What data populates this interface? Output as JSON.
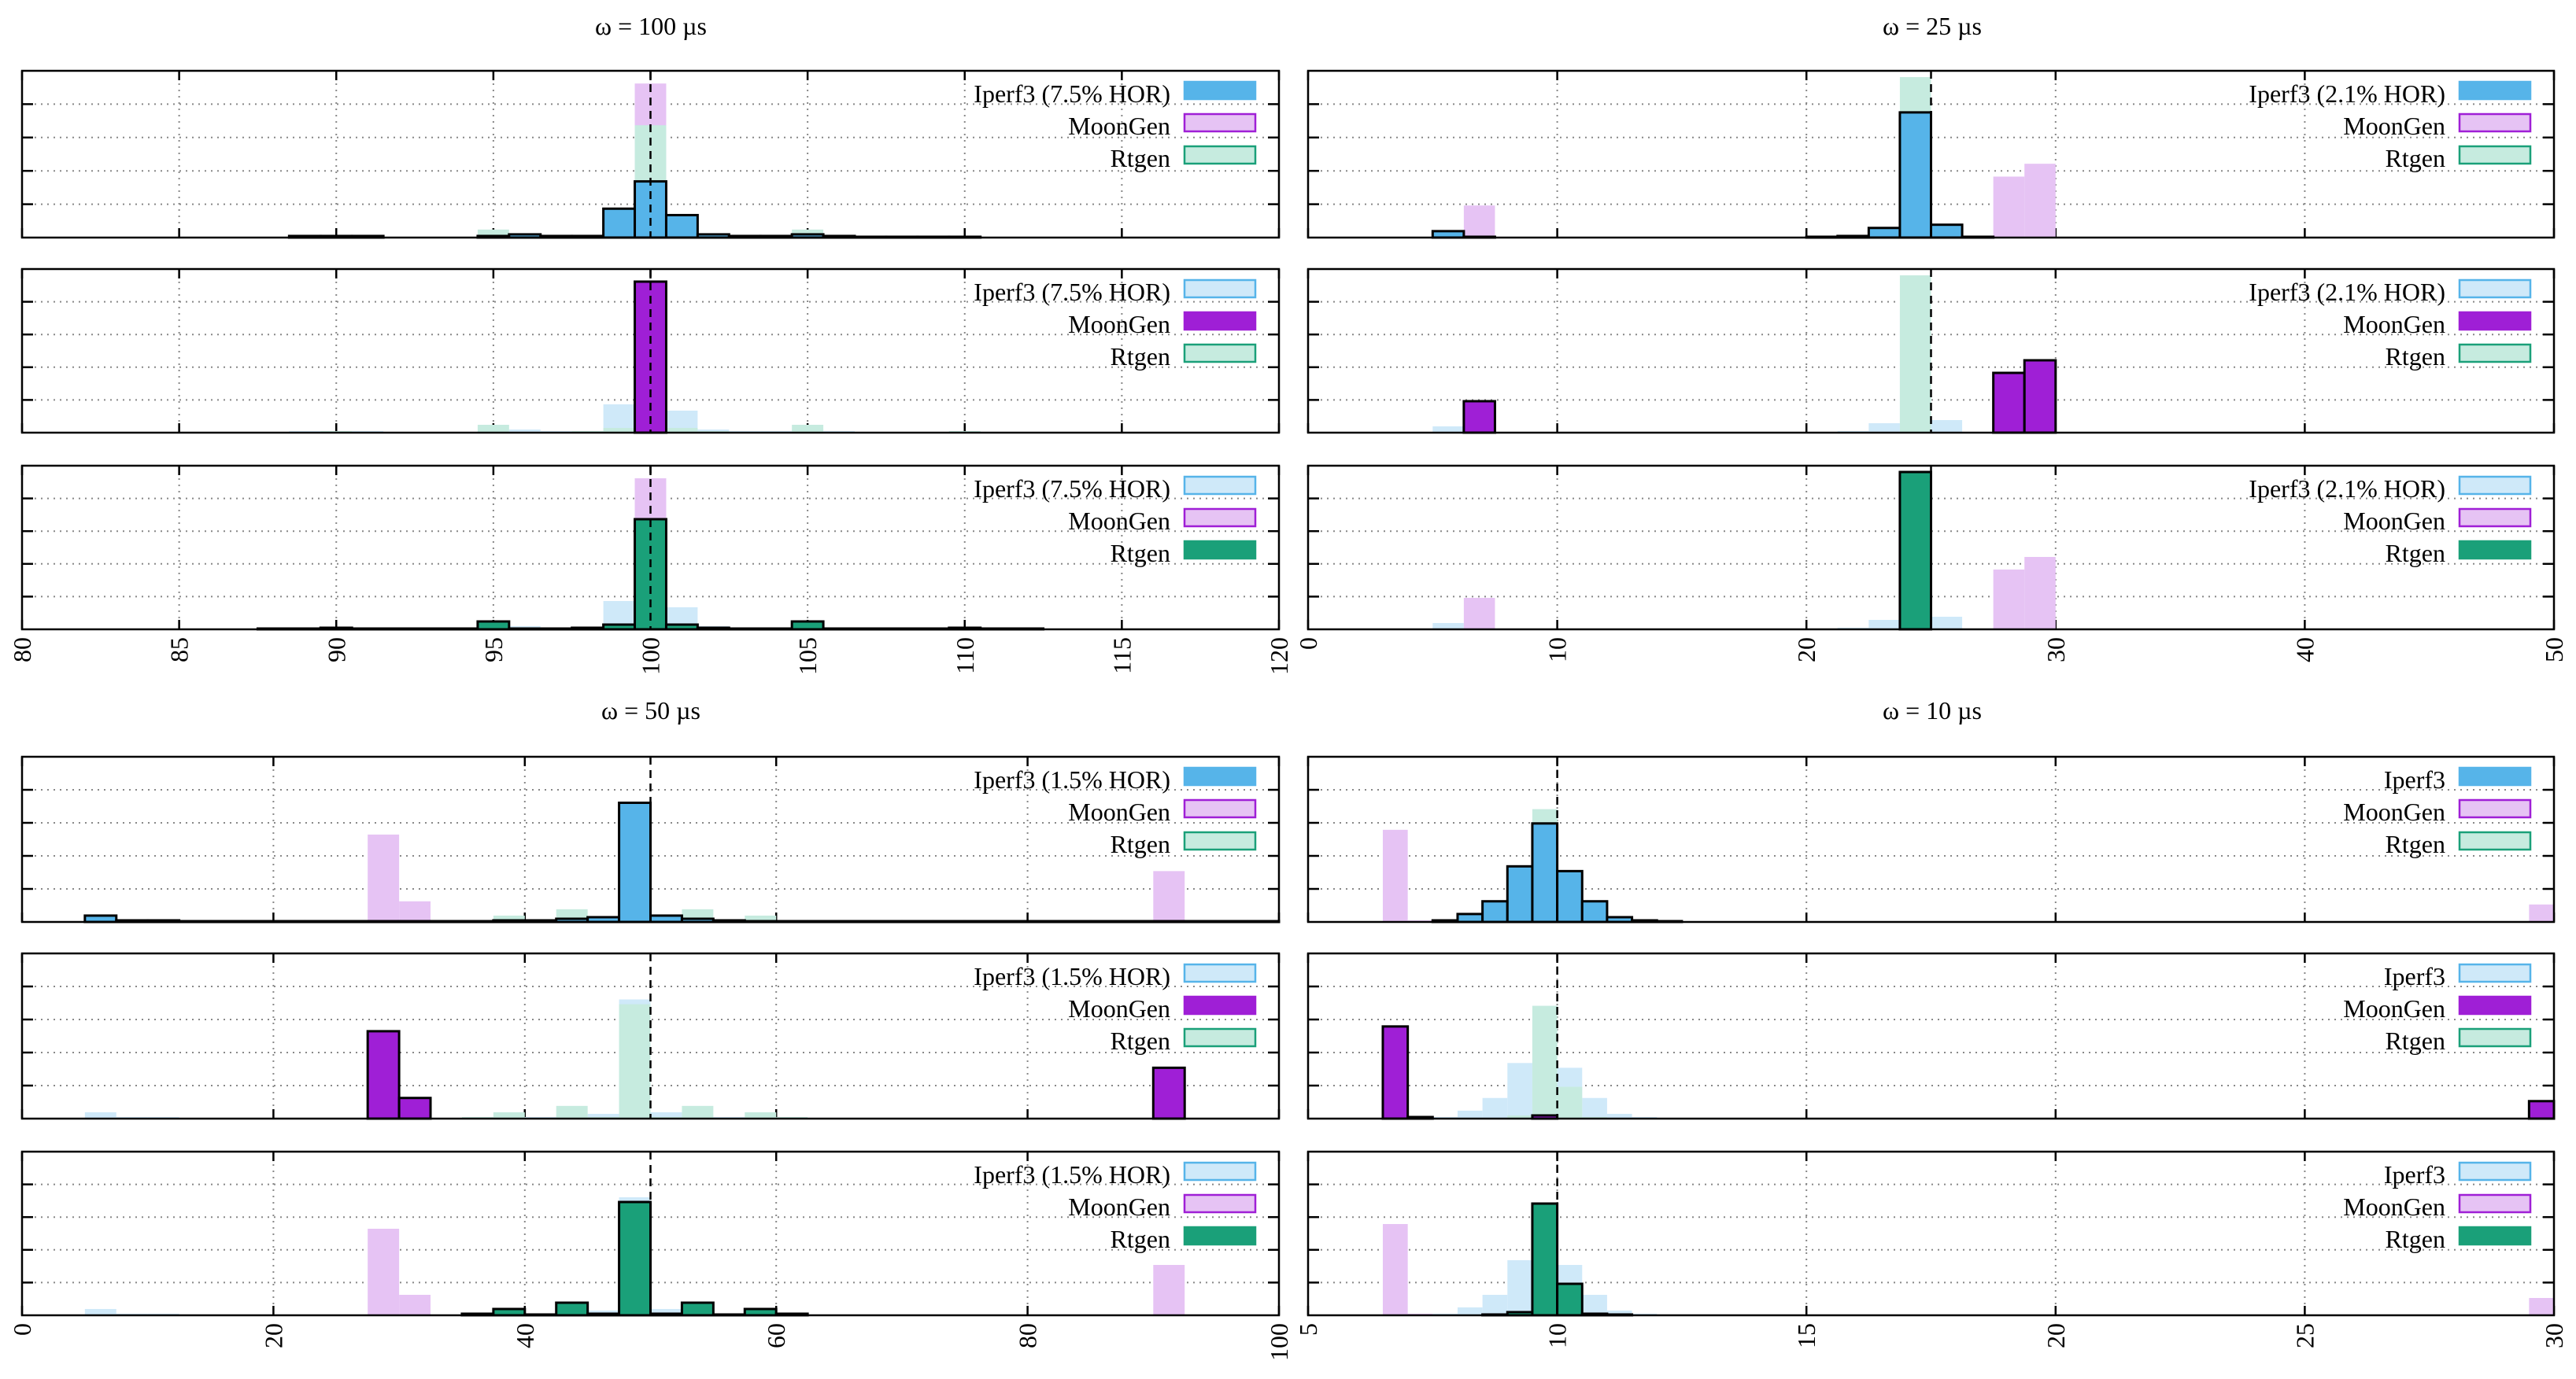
{
  "colors": {
    "iperf": "#56b4e9",
    "iperf_light": "#cfe9f9",
    "moongen": "#9f1fd6",
    "moongen_light": "#e6c3f4",
    "rtgen": "#1aa079",
    "rtgen_light": "#c6ebdf"
  },
  "chart_data": [
    {
      "type": "bar",
      "title": "ω = 100 µs",
      "xlim": [
        80,
        120
      ],
      "xticks": [
        "80",
        "85",
        "90",
        "95",
        "100",
        "105",
        "110",
        "115",
        "120"
      ],
      "xticks_values": [
        80,
        85,
        90,
        95,
        100,
        105,
        110,
        115,
        120
      ],
      "ylim": [
        0,
        1
      ],
      "binwidth": 1,
      "marker": 100,
      "legend": [
        "Iperf3 (7.5% HOR)",
        "MoonGen",
        "Rtgen"
      ],
      "x": [
        88,
        89,
        90,
        91,
        92,
        93,
        94,
        95,
        96,
        97,
        98,
        99,
        100,
        101,
        102,
        103,
        104,
        105,
        106,
        107,
        108,
        109,
        110,
        111,
        112
      ],
      "series": [
        {
          "name": "Iperf3",
          "values": [
            0,
            0.01,
            0.01,
            0.01,
            0,
            0,
            0,
            0.01,
            0.02,
            0.01,
            0.01,
            0.18,
            0.35,
            0.14,
            0.02,
            0.01,
            0.01,
            0.02,
            0.01,
            0.005,
            0.005,
            0.005,
            0.005,
            0,
            0
          ]
        },
        {
          "name": "MoonGen",
          "values": [
            0,
            0,
            0,
            0,
            0,
            0,
            0,
            0,
            0,
            0,
            0,
            0,
            0.96,
            0,
            0,
            0,
            0,
            0,
            0,
            0,
            0,
            0,
            0,
            0,
            0
          ]
        },
        {
          "name": "Rtgen",
          "values": [
            0.005,
            0.005,
            0.01,
            0.005,
            0.005,
            0.005,
            0.005,
            0.05,
            0.005,
            0.005,
            0.01,
            0.03,
            0.7,
            0.03,
            0.01,
            0.005,
            0.005,
            0.05,
            0.005,
            0.005,
            0.005,
            0.005,
            0.01,
            0.005,
            0.005
          ]
        }
      ],
      "panel_axis": {
        "left": 16,
        "right": 778,
        "bottom": 805
      }
    },
    {
      "type": "bar",
      "title": "ω = 25 µs",
      "xlim": [
        0,
        50
      ],
      "xticks": [
        "0",
        "10",
        "20",
        "30",
        "40",
        "50"
      ],
      "xticks_values": [
        0,
        10,
        20,
        30,
        40,
        50
      ],
      "ylim": [
        0,
        1
      ],
      "binwidth": 1.25,
      "marker": 25,
      "legend": [
        "Iperf3 (2.1% HOR)",
        "MoonGen",
        "Rtgen"
      ],
      "x": [
        5.625,
        6.875,
        8.125,
        9.375,
        10.625,
        20.625,
        21.875,
        23.125,
        24.375,
        25.625,
        26.875,
        28.125,
        29.375,
        30.625
      ],
      "series": [
        {
          "name": "Iperf3",
          "values": [
            0.04,
            0.005,
            0,
            0,
            0,
            0.005,
            0.01,
            0.06,
            0.78,
            0.08,
            0.005,
            0,
            0,
            0
          ]
        },
        {
          "name": "MoonGen",
          "values": [
            0,
            0.2,
            0,
            0,
            0,
            0,
            0,
            0,
            0,
            0,
            0,
            0.38,
            0.46,
            0
          ]
        },
        {
          "name": "Rtgen",
          "values": [
            0,
            0,
            0,
            0,
            0,
            0,
            0,
            0,
            1.0,
            0,
            0,
            0,
            0,
            0
          ]
        }
      ]
    },
    {
      "type": "bar",
      "title": "ω = 50 µs",
      "xlim": [
        0,
        100
      ],
      "xticks": [
        "0",
        "20",
        "40",
        "60",
        "80",
        "100"
      ],
      "xticks_values": [
        0,
        20,
        40,
        60,
        80,
        100
      ],
      "ylim": [
        0,
        1
      ],
      "binwidth": 2.5,
      "marker": 50,
      "legend": [
        "Iperf3 (1.5% HOR)",
        "MoonGen",
        "Rtgen"
      ],
      "x": [
        6.25,
        8.75,
        11.25,
        13.75,
        16.25,
        18.75,
        21.25,
        23.75,
        26.25,
        28.75,
        31.25,
        33.75,
        36.25,
        38.75,
        41.25,
        43.75,
        46.25,
        48.75,
        51.25,
        53.75,
        56.25,
        58.75,
        61.25,
        63.75,
        66.25,
        68.75,
        71.25,
        73.75,
        76.25,
        78.75,
        81.25,
        83.75,
        86.25,
        88.75,
        91.25,
        93.75,
        96.25,
        98.75
      ],
      "series": [
        {
          "name": "Iperf3",
          "values": [
            0.04,
            0.01,
            0.01,
            0.005,
            0.005,
            0.005,
            0.005,
            0.005,
            0.005,
            0.005,
            0.005,
            0.005,
            0.005,
            0.01,
            0.01,
            0.02,
            0.03,
            0.75,
            0.04,
            0.02,
            0.01,
            0.005,
            0.005,
            0.005,
            0.005,
            0.005,
            0.005,
            0.005,
            0.005,
            0.005,
            0.005,
            0.005,
            0.005,
            0.005,
            0.005,
            0.005,
            0.005,
            0.005
          ]
        },
        {
          "name": "MoonGen",
          "values": [
            0,
            0,
            0,
            0,
            0,
            0,
            0,
            0,
            0,
            0.55,
            0.13,
            0,
            0,
            0,
            0,
            0,
            0,
            0,
            0,
            0,
            0,
            0,
            0,
            0,
            0,
            0,
            0,
            0,
            0,
            0,
            0,
            0,
            0,
            0,
            0.32,
            0,
            0,
            0
          ]
        },
        {
          "name": "Rtgen",
          "values": [
            0,
            0,
            0,
            0,
            0,
            0,
            0,
            0,
            0,
            0,
            0,
            0,
            0.01,
            0.04,
            0.005,
            0.08,
            0.01,
            0.72,
            0.01,
            0.08,
            0.005,
            0.04,
            0.01,
            0,
            0,
            0,
            0,
            0,
            0,
            0,
            0,
            0,
            0,
            0,
            0,
            0,
            0,
            0
          ]
        }
      ]
    },
    {
      "type": "bar",
      "title": "ω = 10 µs",
      "xlim": [
        5,
        30
      ],
      "xticks": [
        "5",
        "10",
        "15",
        "20",
        "25",
        "30"
      ],
      "xticks_values": [
        5,
        10,
        15,
        20,
        25,
        30
      ],
      "ylim": [
        0,
        1
      ],
      "binwidth": 0.5,
      "marker": 10,
      "legend": [
        "Iperf3",
        "MoonGen",
        "Rtgen"
      ],
      "x": [
        6.75,
        7.25,
        7.75,
        8.25,
        8.75,
        9.25,
        9.75,
        10.25,
        10.75,
        11.25,
        11.75,
        12.25,
        12.75,
        29.75
      ],
      "series": [
        {
          "name": "Iperf3",
          "values": [
            0,
            0,
            0.01,
            0.05,
            0.13,
            0.35,
            0.62,
            0.32,
            0.13,
            0.03,
            0.01,
            0.005,
            0,
            0
          ]
        },
        {
          "name": "MoonGen",
          "values": [
            0.58,
            0.01,
            0,
            0,
            0,
            0,
            0.02,
            0,
            0,
            0,
            0,
            0,
            0,
            0.11
          ]
        },
        {
          "name": "Rtgen",
          "values": [
            0,
            0,
            0,
            0,
            0.005,
            0.02,
            0.71,
            0.2,
            0.01,
            0.005,
            0,
            0,
            0,
            0
          ]
        }
      ]
    }
  ]
}
